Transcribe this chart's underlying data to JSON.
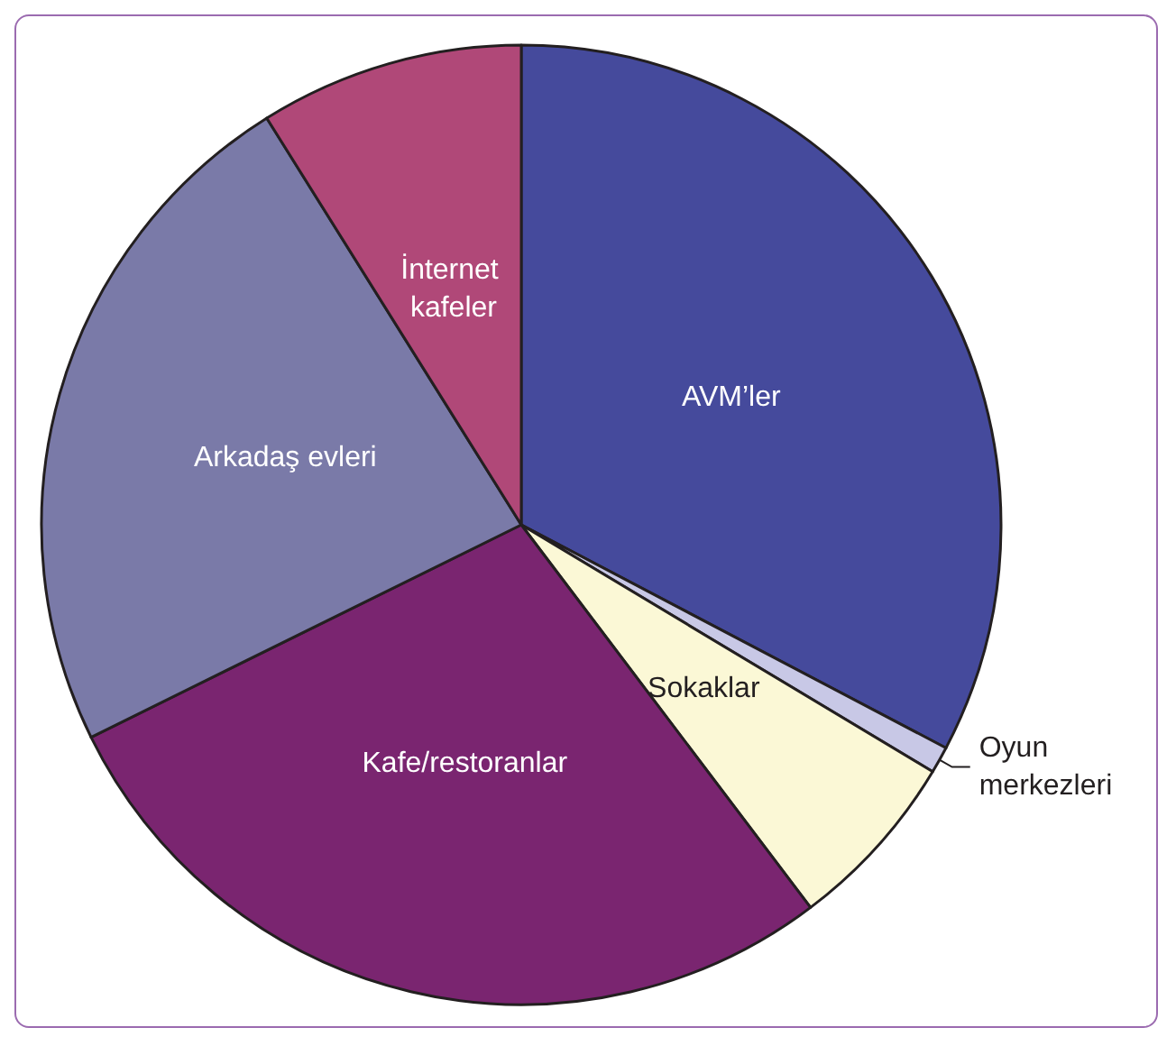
{
  "chart_data": {
    "type": "pie",
    "categories": [
      "AVM’ler",
      "Oyun merkezleri",
      "Sokaklar",
      "Kafe/restoranlar",
      "Arkadaş evleri",
      "İnternet kafeler"
    ],
    "values": [
      32.7,
      0.9,
      6.1,
      28.0,
      23.4,
      8.9
    ],
    "colors": [
      "#454a9c",
      "#c8c8e6",
      "#fbf8d6",
      "#7a2570",
      "#7a7aa8",
      "#b04878"
    ],
    "legend": false
  }
}
